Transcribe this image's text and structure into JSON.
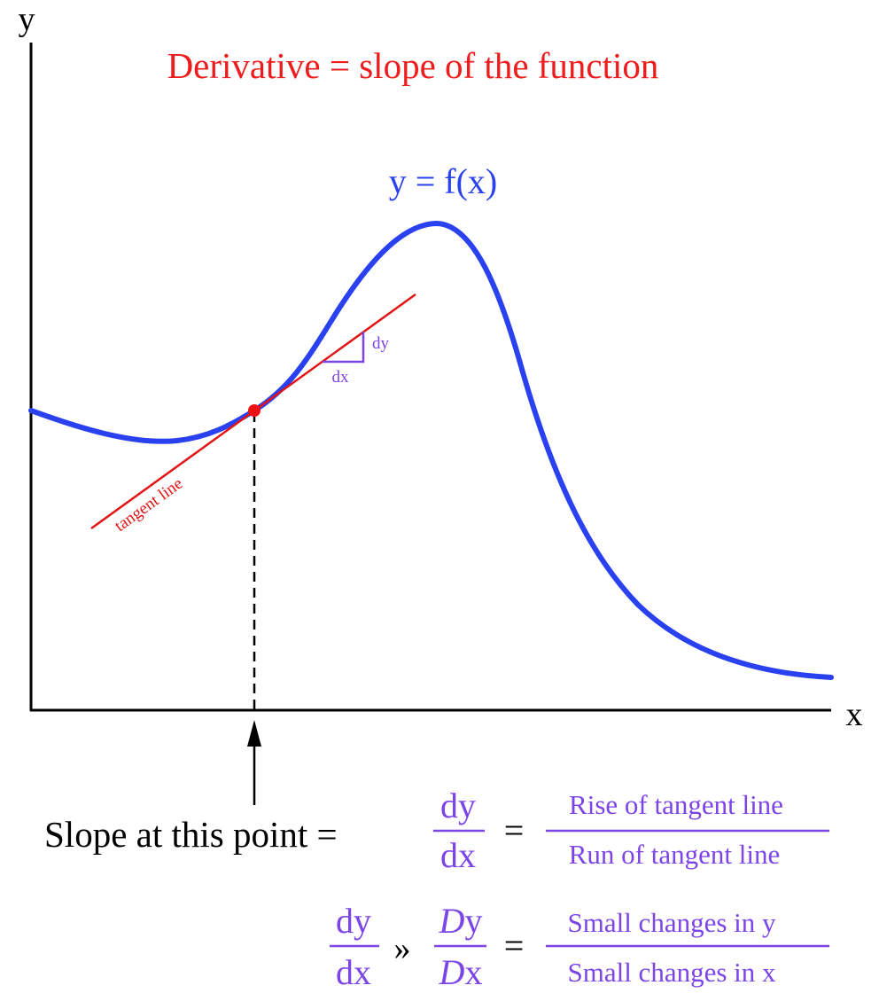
{
  "title": "Derivative = slope of the function",
  "axes": {
    "y_label": "y",
    "x_label": "x"
  },
  "curve_label": "y = f(x)",
  "tangent_label": "tangent line",
  "triangle": {
    "dy_label": "dy",
    "dx_label": "dx"
  },
  "equation1": {
    "lead": "Slope at this point =",
    "frac_num": "dy",
    "frac_den": "dx",
    "equals": "=",
    "rhs_num": "Rise of tangent line",
    "rhs_den": "Run of tangent line"
  },
  "equation2": {
    "frac_num": "dy",
    "frac_den": "dx",
    "approx": "»",
    "delta_symbol": "D",
    "delta_num_var": "y",
    "delta_den_var": "x",
    "equals": "=",
    "rhs_num": "Small changes in y",
    "rhs_den": "Small changes in x"
  },
  "colors": {
    "title": "#ee1c1c",
    "curve": "#2a41f0",
    "tangent": "#e01515",
    "point": "#ee1111",
    "math": "#7b45e8",
    "axis": "#000000"
  }
}
